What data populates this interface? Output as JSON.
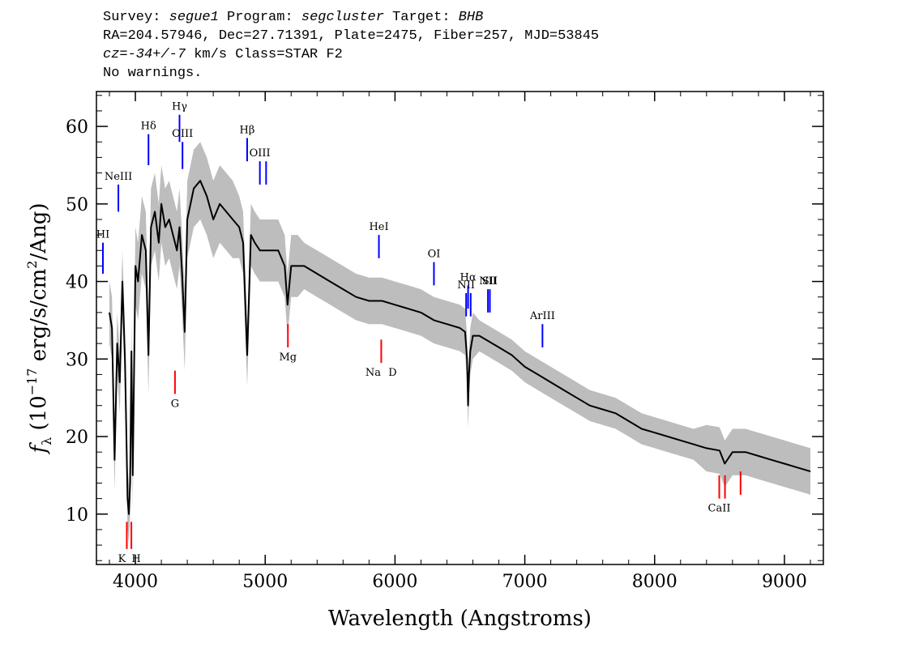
{
  "header": {
    "line1": {
      "survey_label": "Survey: ",
      "survey": "segue1",
      "program_label": " Program: ",
      "program": "segcluster",
      "target_label": " Target: ",
      "target": "BHB"
    },
    "line2": "RA=204.57946, Dec=27.71391, Plate=2475, Fiber=257, MJD=53845",
    "line3": {
      "cz_label": "cz",
      "cz_eq": "=",
      "cz_value": "-34+/-7",
      "cz_rest": " km/s Class=STAR F2"
    },
    "line4": "No warnings."
  },
  "chart_data": {
    "type": "line",
    "title": "",
    "xlabel": "Wavelength (Angstroms)",
    "ylabel": "fλ (10⁻¹⁷ erg/s/cm²/Ang)",
    "ylabel_parts": {
      "f": "f",
      "lambda": "λ",
      "pre": " (10",
      "exp": "−17",
      "mid": " erg/s/cm",
      "sq": "2",
      "post": "/Ang)"
    },
    "xlim": [
      3700,
      9300
    ],
    "ylim": [
      3.5,
      64.5
    ],
    "xticks": [
      4000,
      5000,
      6000,
      7000,
      8000,
      9000
    ],
    "xtick_labels": [
      "4000",
      "5000",
      "6000",
      "7000",
      "8000",
      "9000"
    ],
    "yticks": [
      10,
      20,
      30,
      40,
      50,
      60
    ],
    "ytick_labels": [
      "10",
      "20",
      "30",
      "40",
      "50",
      "60"
    ],
    "grid": false,
    "colors": {
      "spectrum": "#000000",
      "noise_band": "#bdbdbd",
      "emission_marker": "#0000ff",
      "absorption_marker": "#ff0000"
    },
    "series": [
      {
        "role": "smoothed flux",
        "x": [
          3800,
          3820,
          3840,
          3860,
          3880,
          3900,
          3920,
          3940,
          3950,
          3960,
          3970,
          3980,
          4000,
          4020,
          4050,
          4080,
          4101,
          4120,
          4150,
          4180,
          4200,
          4230,
          4260,
          4290,
          4320,
          4340,
          4360,
          4380,
          4400,
          4450,
          4500,
          4550,
          4600,
          4650,
          4700,
          4750,
          4800,
          4830,
          4861,
          4890,
          4920,
          4960,
          5000,
          5050,
          5100,
          5150,
          5172,
          5200,
          5250,
          5300,
          5400,
          5500,
          5600,
          5700,
          5800,
          5900,
          6000,
          6100,
          6200,
          6300,
          6400,
          6500,
          6540,
          6555,
          6563,
          6570,
          6580,
          6600,
          6650,
          6700,
          6800,
          6900,
          7000,
          7100,
          7200,
          7300,
          7400,
          7500,
          7600,
          7700,
          7800,
          7900,
          8000,
          8100,
          8200,
          8300,
          8400,
          8500,
          8540,
          8600,
          8700,
          8800,
          8900,
          9000,
          9100,
          9200
        ],
        "y": [
          36,
          34,
          17,
          32,
          27,
          40,
          30,
          12,
          10,
          14,
          31,
          15,
          42,
          40,
          46,
          44,
          30.5,
          47,
          49,
          45,
          50,
          47,
          48,
          46,
          44,
          47,
          41,
          33.5,
          48,
          52,
          53,
          51,
          48,
          50,
          49,
          48,
          47,
          45,
          30.5,
          46,
          45,
          44,
          44,
          44,
          44,
          42,
          37,
          42,
          42,
          42,
          41,
          40,
          39,
          38,
          37.5,
          37.5,
          37,
          36.5,
          36,
          35,
          34.5,
          34,
          33.5,
          30,
          24,
          28,
          31,
          33,
          33,
          32.5,
          31.5,
          30.5,
          29,
          28,
          27,
          26,
          25,
          24,
          23.5,
          23,
          22,
          21,
          20.5,
          20,
          19.5,
          19,
          18.5,
          18.2,
          16.5,
          18,
          18,
          17.5,
          17,
          16.5,
          16,
          15.5
        ],
        "band": [
          4,
          4,
          4,
          4,
          4,
          4,
          4,
          4,
          4,
          4,
          4,
          4,
          5,
          5,
          5,
          5,
          5,
          5,
          5,
          5,
          5,
          5,
          5,
          5,
          5,
          5,
          5,
          5,
          5,
          5,
          5,
          5,
          5,
          5,
          5,
          5,
          4,
          4,
          4,
          4,
          4,
          4,
          4,
          4,
          4,
          4,
          4,
          4,
          4,
          3,
          3,
          3,
          3,
          3,
          3,
          3,
          3,
          3,
          3,
          3,
          3,
          3,
          3,
          3,
          3,
          3,
          3,
          3,
          2,
          2,
          2,
          2,
          2,
          2,
          2,
          2,
          2,
          2,
          2,
          2,
          2,
          2,
          2,
          2,
          2,
          2,
          3,
          3,
          3,
          3,
          3,
          3,
          3,
          3,
          3,
          3
        ]
      }
    ],
    "emission_lines": [
      {
        "label": "HI",
        "x": 3750,
        "y1": 45,
        "y2": 41
      },
      {
        "label": "NeIII",
        "x": 3869,
        "y1": 52.5,
        "y2": 49
      },
      {
        "label": "Hδ",
        "x": 4101,
        "y1": 59,
        "y2": 55
      },
      {
        "label": "Hγ",
        "x": 4340,
        "y1": 61.5,
        "y2": 58
      },
      {
        "label": "OIII",
        "x": 4363,
        "y1": 58,
        "y2": 54.5
      },
      {
        "label": "Hβ",
        "x": 4861,
        "y1": 58.5,
        "y2": 55.5
      },
      {
        "label": "OIII",
        "x": 4959,
        "y1": 55.5,
        "y2": 52.5
      },
      {
        "label": "",
        "x": 5007,
        "y1": 55.5,
        "y2": 52.5
      },
      {
        "label": "HeI",
        "x": 5876,
        "y1": 46,
        "y2": 43
      },
      {
        "label": "OI",
        "x": 6300,
        "y1": 42.5,
        "y2": 39.5
      },
      {
        "label": "NII",
        "x": 6548,
        "y1": 38.5,
        "y2": 35.5
      },
      {
        "label": "Hα",
        "x": 6563,
        "y1": 39.5,
        "y2": 36.5
      },
      {
        "label": "",
        "x": 6583,
        "y1": 38.5,
        "y2": 35.5
      },
      {
        "label": "NII",
        "x": 6716,
        "y1": 39,
        "y2": 36
      },
      {
        "label": "SII",
        "x": 6731,
        "y1": 39,
        "y2": 36
      },
      {
        "label": "ArIII",
        "x": 7136,
        "y1": 34.5,
        "y2": 31.5
      }
    ],
    "absorption_lines": [
      {
        "label": "K",
        "x": 3934,
        "y1": 9,
        "y2": 5.5
      },
      {
        "label": "H",
        "x": 3969,
        "y1": 9,
        "y2": 5.5
      },
      {
        "label": "G",
        "x": 4305,
        "y1": 28.5,
        "y2": 25.5
      },
      {
        "label": "Mg",
        "x": 5175,
        "y1": 34.5,
        "y2": 31.5
      },
      {
        "label": "Na",
        "x": 5894,
        "y1": 32.5,
        "y2": 29.5
      },
      {
        "label": "D",
        "x": 5894,
        "y1": 32.5,
        "y2": 29.5
      },
      {
        "label": "CaII",
        "x": 8498,
        "y1": 15,
        "y2": 12
      },
      {
        "label": "",
        "x": 8542,
        "y1": 15,
        "y2": 12
      },
      {
        "label": "",
        "x": 8662,
        "y1": 15.5,
        "y2": 12.5
      }
    ]
  }
}
